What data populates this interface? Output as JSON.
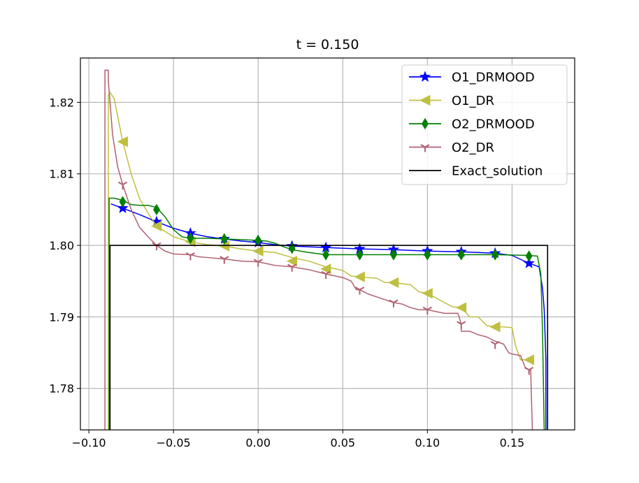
{
  "chart_data": {
    "type": "line",
    "title": "t = 0.150",
    "xlabel": "",
    "ylabel": "",
    "xlim": [
      -0.105,
      0.187
    ],
    "ylim": [
      1.7742,
      1.8262
    ],
    "grid": true,
    "legend_position": "top-right",
    "x_ticks": [
      -0.1,
      -0.05,
      0.0,
      0.05,
      0.1,
      0.15
    ],
    "x_tick_labels": [
      "−0.10",
      "−0.05",
      "0.00",
      "0.05",
      "0.10",
      "0.15"
    ],
    "y_ticks": [
      1.78,
      1.79,
      1.8,
      1.81,
      1.82
    ],
    "y_tick_labels": [
      "1.78",
      "1.79",
      "1.80",
      "1.81",
      "1.82"
    ],
    "series": [
      {
        "name": "O1_DRMOOD",
        "color": "#0000ff",
        "marker": "star",
        "x": [
          -0.087,
          -0.08,
          -0.07,
          -0.06,
          -0.05,
          -0.04,
          -0.03,
          -0.02,
          -0.01,
          0.0,
          0.01,
          0.02,
          0.04,
          0.06,
          0.08,
          0.1,
          0.12,
          0.14,
          0.15,
          0.16,
          0.166,
          0.168,
          0.169,
          0.17,
          0.17
        ],
        "y": [
          1.8058,
          1.8052,
          1.8043,
          1.8033,
          1.8024,
          1.8017,
          1.8012,
          1.8009,
          1.8006,
          1.8004,
          1.8001,
          1.7999,
          1.7997,
          1.7995,
          1.7994,
          1.7992,
          1.7991,
          1.7989,
          1.7986,
          1.7975,
          1.797,
          1.794,
          1.791,
          1.784,
          1.7742
        ],
        "marker_x": [
          -0.08,
          -0.06,
          -0.04,
          -0.02,
          0.0,
          0.02,
          0.04,
          0.06,
          0.08,
          0.1,
          0.12,
          0.14,
          0.16
        ],
        "marker_y": [
          1.8052,
          1.8033,
          1.8017,
          1.8009,
          1.8004,
          1.7999,
          1.7997,
          1.7995,
          1.7994,
          1.7992,
          1.7991,
          1.7989,
          1.7975
        ]
      },
      {
        "name": "O1_DR",
        "color": "#bfbf40",
        "marker": "triangle-left",
        "x": [
          -0.0885,
          -0.0885,
          -0.0875,
          -0.085,
          -0.08,
          -0.075,
          -0.07,
          -0.065,
          -0.06,
          -0.05,
          -0.04,
          -0.03,
          -0.02,
          -0.01,
          0.0,
          0.01,
          0.02,
          0.03,
          0.04,
          0.05,
          0.055,
          0.06,
          0.07,
          0.075,
          0.08,
          0.09,
          0.095,
          0.1,
          0.11,
          0.115,
          0.12,
          0.125,
          0.13,
          0.135,
          0.14,
          0.145,
          0.15,
          0.152,
          0.155,
          0.16,
          0.162
        ],
        "y": [
          1.7742,
          1.821,
          1.8214,
          1.8205,
          1.8145,
          1.81,
          1.8065,
          1.8045,
          1.8027,
          1.8012,
          1.8005,
          1.8001,
          1.7999,
          1.7995,
          1.7992,
          1.799,
          1.7983,
          1.7978,
          1.797,
          1.7965,
          1.7957,
          1.7956,
          1.7954,
          1.7948,
          1.7948,
          1.7945,
          1.7935,
          1.7933,
          1.792,
          1.7914,
          1.7913,
          1.79,
          1.79,
          1.7888,
          1.7886,
          1.7886,
          1.7885,
          1.786,
          1.784,
          1.784,
          1.784
        ],
        "marker_x": [
          -0.08,
          -0.06,
          -0.04,
          -0.02,
          0.0,
          0.02,
          0.04,
          0.06,
          0.08,
          0.1,
          0.12,
          0.14,
          0.16
        ],
        "marker_y": [
          1.8145,
          1.8027,
          1.8005,
          1.7999,
          1.7992,
          1.7978,
          1.7967,
          1.7956,
          1.7948,
          1.7933,
          1.7913,
          1.7886,
          1.784
        ]
      },
      {
        "name": "O2_DRMOOD",
        "color": "#008000",
        "marker": "thin-diamond",
        "x": [
          -0.088,
          -0.088,
          -0.085,
          -0.08,
          -0.075,
          -0.07,
          -0.065,
          -0.06,
          -0.055,
          -0.05,
          -0.045,
          -0.04,
          -0.03,
          -0.02,
          -0.01,
          0.0,
          0.005,
          0.01,
          0.015,
          0.02,
          0.03,
          0.04,
          0.06,
          0.08,
          0.1,
          0.12,
          0.14,
          0.16,
          0.165,
          0.167,
          0.168,
          0.169
        ],
        "y": [
          1.7742,
          1.8066,
          1.8066,
          1.8063,
          1.8057,
          1.8056,
          1.8056,
          1.8053,
          1.804,
          1.8022,
          1.8012,
          1.801,
          1.801,
          1.8009,
          1.8008,
          1.8007,
          1.8006,
          1.8003,
          1.7998,
          1.7994,
          1.799,
          1.7987,
          1.7987,
          1.7987,
          1.7987,
          1.7987,
          1.7987,
          1.7986,
          1.7985,
          1.796,
          1.788,
          1.7742
        ],
        "marker_x": [
          -0.08,
          -0.06,
          -0.04,
          -0.02,
          0.0,
          0.02,
          0.04,
          0.06,
          0.08,
          0.1,
          0.12,
          0.14,
          0.16
        ],
        "marker_y": [
          1.8061,
          1.805,
          1.801,
          1.8009,
          1.8007,
          1.7996,
          1.7987,
          1.7987,
          1.7987,
          1.7987,
          1.7987,
          1.7987,
          1.7985
        ]
      },
      {
        "name": "O2_DR",
        "color": "#b06070",
        "marker": "tri-down",
        "x": [
          -0.0905,
          -0.0905,
          -0.0885,
          -0.0885,
          -0.086,
          -0.083,
          -0.08,
          -0.075,
          -0.07,
          -0.065,
          -0.06,
          -0.055,
          -0.05,
          -0.04,
          -0.035,
          -0.03,
          -0.02,
          -0.01,
          0.0,
          0.01,
          0.02,
          0.03,
          0.04,
          0.05,
          0.055,
          0.058,
          0.06,
          0.065,
          0.07,
          0.075,
          0.08,
          0.085,
          0.09,
          0.095,
          0.1,
          0.11,
          0.118,
          0.12,
          0.12,
          0.125,
          0.13,
          0.135,
          0.14,
          0.145,
          0.148,
          0.15,
          0.155,
          0.158,
          0.16,
          0.161,
          0.162
        ],
        "y": [
          1.7742,
          1.8245,
          1.8245,
          1.823,
          1.8155,
          1.811,
          1.8085,
          1.805,
          1.8025,
          1.8012,
          1.8,
          1.7992,
          1.7988,
          1.7987,
          1.7984,
          1.7983,
          1.7981,
          1.7978,
          1.7977,
          1.7972,
          1.797,
          1.7966,
          1.796,
          1.7955,
          1.795,
          1.7938,
          1.7938,
          1.7932,
          1.7928,
          1.7924,
          1.792,
          1.7918,
          1.7913,
          1.791,
          1.791,
          1.7905,
          1.7905,
          1.789,
          1.788,
          1.788,
          1.7875,
          1.7872,
          1.7866,
          1.7862,
          1.785,
          1.7848,
          1.7846,
          1.7828,
          1.7826,
          1.7826,
          1.7742
        ],
        "marker_x": [
          -0.08,
          -0.06,
          -0.04,
          -0.02,
          0.0,
          0.02,
          0.04,
          0.06,
          0.08,
          0.1,
          0.12,
          0.14,
          0.16
        ],
        "marker_y": [
          1.8085,
          1.8,
          1.7986,
          1.7981,
          1.7977,
          1.797,
          1.796,
          1.7938,
          1.792,
          1.791,
          1.789,
          1.7862,
          1.7826
        ]
      },
      {
        "name": "Exact_solution",
        "color": "#000000",
        "marker": "none",
        "x": [
          -0.0875,
          -0.0875,
          0.171,
          0.171
        ],
        "y": [
          1.7742,
          1.8,
          1.8,
          1.7742
        ],
        "marker_x": [],
        "marker_y": []
      }
    ]
  }
}
